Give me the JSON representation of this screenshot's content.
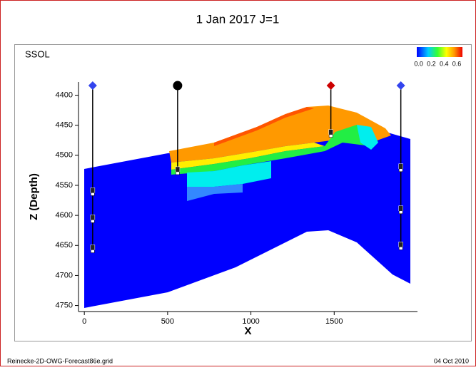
{
  "chart_data": {
    "type": "section",
    "title": "1 Jan 2017   J=1",
    "property": "SSOL",
    "xlabel": "X",
    "ylabel": "Z (Depth)",
    "xlim": [
      -35,
      2000
    ],
    "xticks": [
      0,
      500,
      1000,
      1500
    ],
    "ylim": [
      4378,
      4760
    ],
    "yticks": [
      4400,
      4450,
      4500,
      4550,
      4600,
      4650,
      4700,
      4750
    ],
    "y_inverted": true,
    "clim": [
      -0.03,
      0.69
    ],
    "cticks": [
      {
        "value": 0,
        "label": "0.0"
      },
      0.2,
      0.4,
      0.6
    ],
    "wells": [
      {
        "x": 50,
        "top": 4384,
        "bottom": 4658,
        "marker": "diamond",
        "color": "#3344ee",
        "perforations": [
          4560,
          4605,
          4655
        ]
      },
      {
        "x": 560,
        "top": 4384,
        "bottom": 4528,
        "marker": "circle",
        "color": "#000000",
        "perforations": [
          4525
        ]
      },
      {
        "x": 1480,
        "top": 4384,
        "bottom": 4466,
        "marker": "diamond",
        "color": "#cc0000",
        "perforations": [
          4463
        ]
      },
      {
        "x": 1900,
        "top": 4384,
        "bottom": 4655,
        "marker": "diamond",
        "color": "#3344ee",
        "perforations": [
          4520,
          4590,
          4650
        ]
      }
    ]
  },
  "footer": {
    "file": "Reinecke-2D-OWG-Forecast86e.grid",
    "date": "04 Oct 2010"
  }
}
